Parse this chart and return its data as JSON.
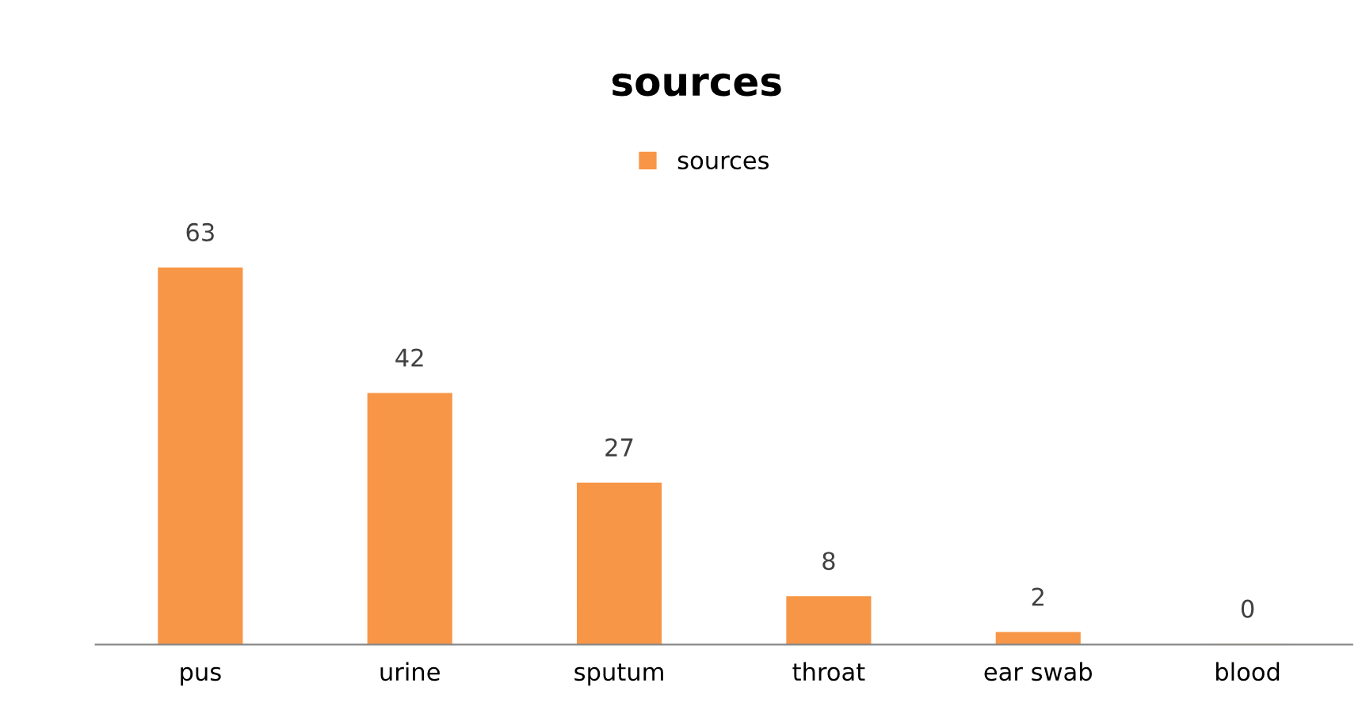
{
  "chart_data": {
    "type": "bar",
    "title": "sources",
    "categories": [
      "pus",
      "urine",
      "sputum",
      "throat",
      "ear swab",
      "blood"
    ],
    "series": [
      {
        "name": "sources",
        "color": "#f79646",
        "values": [
          63,
          42,
          27,
          8,
          2,
          0
        ]
      }
    ],
    "data_labels": true,
    "legend": "top",
    "grid": false
  }
}
